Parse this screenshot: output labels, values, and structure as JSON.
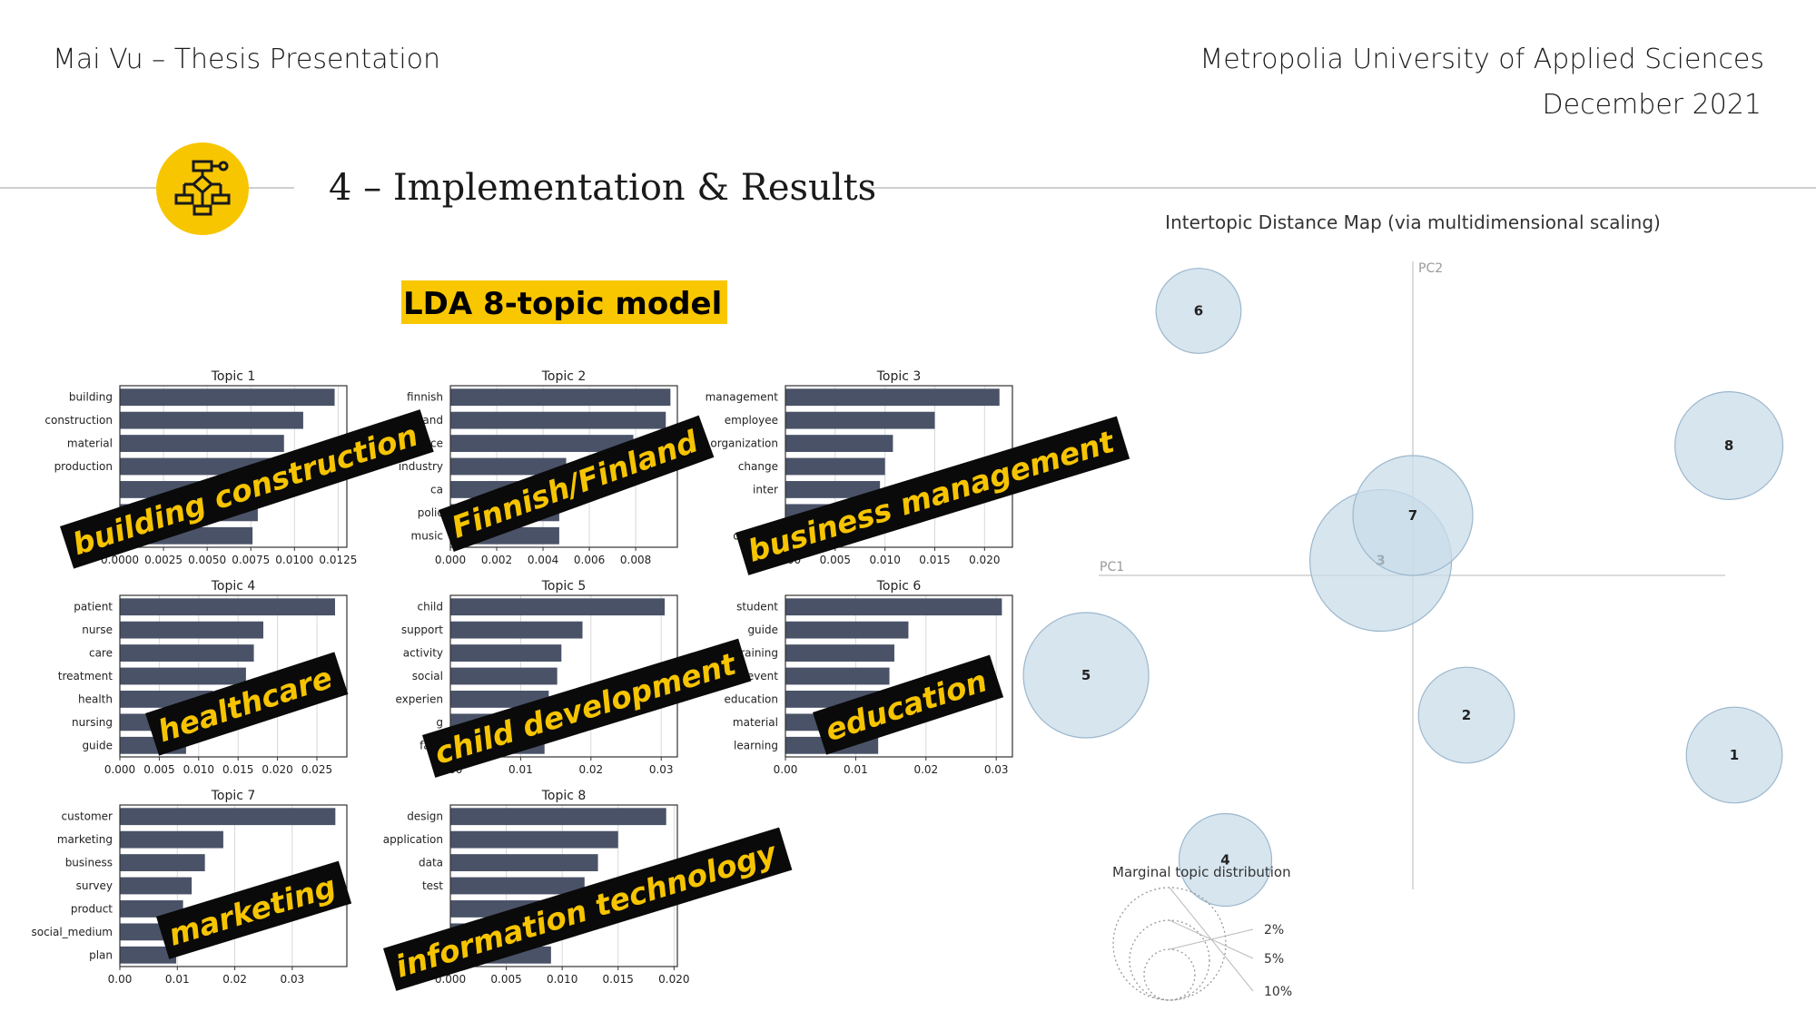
{
  "header": {
    "author": "Mai Vu – Thesis Presentation",
    "university": "Metropolia University of Applied Sciences",
    "date": "December 2021"
  },
  "section": {
    "title": "4 – Implementation & Results",
    "icon": "flowchart-icon"
  },
  "lda_title": "LDA 8-topic model",
  "chart_data": [
    {
      "type": "bar",
      "title": "Topic 1",
      "categories": [
        "building",
        "construction",
        "material",
        "production",
        "",
        "",
        "plan"
      ],
      "values": [
        0.0123,
        0.0105,
        0.0094,
        0.0094,
        0.0083,
        0.0079,
        0.0076
      ],
      "xlim": [
        0,
        0.013
      ],
      "ticks": [
        "0.0000",
        "0.0025",
        "0.0050",
        "0.0075",
        "0.0100",
        "0.0125"
      ],
      "tick_values": [
        0,
        0.0025,
        0.005,
        0.0075,
        0.01,
        0.0125
      ],
      "bar_color": "#4a5268"
    },
    {
      "type": "bar",
      "title": "Topic 2",
      "categories": [
        "finnish",
        "finland",
        "source",
        "industry",
        "ca",
        "polic",
        "music"
      ],
      "values": [
        0.0095,
        0.0093,
        0.0079,
        0.005,
        0.0048,
        0.0047,
        0.0047
      ],
      "xlim": [
        0,
        0.0098
      ],
      "ticks": [
        "0.000",
        "0.002",
        "0.004",
        "0.006",
        "0.008"
      ],
      "tick_values": [
        0,
        0.002,
        0.004,
        0.006,
        0.008
      ],
      "bar_color": "#4a5268"
    },
    {
      "type": "bar",
      "title": "Topic 3",
      "categories": [
        "management",
        "employee",
        "organization",
        "change",
        "inter",
        "",
        "orie  tion"
      ],
      "values": [
        0.0215,
        0.015,
        0.0108,
        0.01,
        0.0095,
        0.008,
        0.0065
      ],
      "xlim": [
        0,
        0.0228
      ],
      "ticks": [
        "0.000",
        "0.005",
        "0.010",
        "0.015",
        "0.020"
      ],
      "tick_values": [
        0,
        0.005,
        0.01,
        0.015,
        0.02
      ],
      "bar_color": "#4a5268"
    },
    {
      "type": "bar",
      "title": "Topic 4",
      "categories": [
        "patient",
        "nurse",
        "care",
        "treatment",
        "health",
        "nursing",
        "guide"
      ],
      "values": [
        0.0273,
        0.0182,
        0.017,
        0.016,
        0.0118,
        0.0095,
        0.0084
      ],
      "xlim": [
        0,
        0.0288
      ],
      "ticks": [
        "0.000",
        "0.005",
        "0.010",
        "0.015",
        "0.020",
        "0.025"
      ],
      "tick_values": [
        0,
        0.005,
        0.01,
        0.015,
        0.02,
        0.025
      ],
      "bar_color": "#4a5268"
    },
    {
      "type": "bar",
      "title": "Topic 5",
      "categories": [
        "child",
        "support",
        "activity",
        "social",
        "experien",
        "g",
        "fa  ly"
      ],
      "values": [
        0.0305,
        0.0188,
        0.0158,
        0.0152,
        0.014,
        0.0135,
        0.0134
      ],
      "xlim": [
        0,
        0.0323
      ],
      "ticks": [
        "0.00",
        "0.01",
        "0.02",
        "0.03"
      ],
      "tick_values": [
        0,
        0.01,
        0.02,
        0.03
      ],
      "bar_color": "#4a5268"
    },
    {
      "type": "bar",
      "title": "Topic 6",
      "categories": [
        "student",
        "guide",
        "training",
        "event",
        "education",
        "material",
        "learning"
      ],
      "values": [
        0.0308,
        0.0175,
        0.0155,
        0.0148,
        0.0145,
        0.0138,
        0.0132
      ],
      "xlim": [
        0,
        0.0323
      ],
      "ticks": [
        "0.00",
        "0.01",
        "0.02",
        "0.03"
      ],
      "tick_values": [
        0,
        0.01,
        0.02,
        0.03
      ],
      "bar_color": "#4a5268"
    },
    {
      "type": "bar",
      "title": "Topic 7",
      "categories": [
        "customer",
        "marketing",
        "business",
        "survey",
        "product",
        "social_medium",
        "plan"
      ],
      "values": [
        0.0375,
        0.018,
        0.0148,
        0.0125,
        0.011,
        0.0108,
        0.0098
      ],
      "xlim": [
        0,
        0.0395
      ],
      "ticks": [
        "0.00",
        "0.01",
        "0.02",
        "0.03"
      ],
      "tick_values": [
        0,
        0.01,
        0.02,
        0.03
      ],
      "bar_color": "#4a5268"
    },
    {
      "type": "bar",
      "title": "Topic 8",
      "categories": [
        "design",
        "application",
        "data",
        "test",
        "",
        "",
        "user"
      ],
      "values": [
        0.0193,
        0.015,
        0.0132,
        0.012,
        0.009,
        0.009,
        0.009
      ],
      "xlim": [
        0,
        0.0203
      ],
      "ticks": [
        "0.000",
        "0.005",
        "0.010",
        "0.015",
        "0.020"
      ],
      "tick_values": [
        0,
        0.005,
        0.01,
        0.015,
        0.02
      ],
      "bar_color": "#4a5268"
    },
    {
      "type": "scatter",
      "title": "Intertopic Distance Map (via multidimensional scaling)",
      "xlabel": "PC1",
      "ylabel": "PC2",
      "points": [
        {
          "label": "1",
          "x": 0.3,
          "y": -0.18,
          "size": 0.088
        },
        {
          "label": "2",
          "x": 0.05,
          "y": -0.14,
          "size": 0.088
        },
        {
          "label": "3",
          "x": -0.03,
          "y": 0.015,
          "size": 0.13
        },
        {
          "label": "4",
          "x": -0.175,
          "y": -0.285,
          "size": 0.085
        },
        {
          "label": "5",
          "x": -0.305,
          "y": -0.1,
          "size": 0.115
        },
        {
          "label": "6",
          "x": -0.2,
          "y": 0.265,
          "size": 0.078
        },
        {
          "label": "7",
          "x": 0.0,
          "y": 0.06,
          "size": 0.11
        },
        {
          "label": "8",
          "x": 0.295,
          "y": 0.13,
          "size": 0.099
        }
      ],
      "circle_color": "#c9dcea",
      "legend_title": "Marginal topic distribution",
      "legend_sizes": [
        "2%",
        "5%",
        "10%"
      ]
    }
  ],
  "overlays": [
    "building construction",
    "Finnish/Finland",
    "business management",
    "healthcare",
    "child development",
    "education",
    "marketing",
    "information technology"
  ]
}
